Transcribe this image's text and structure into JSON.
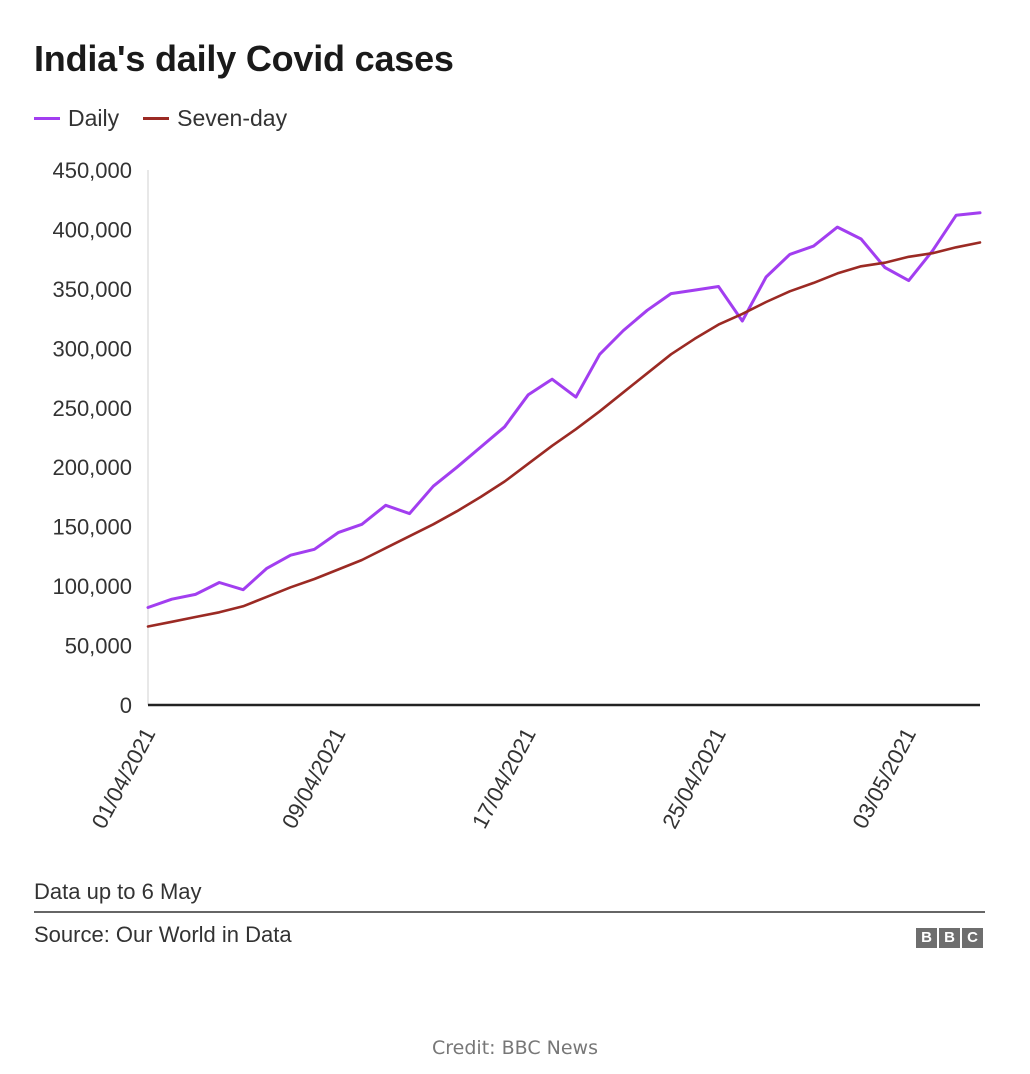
{
  "chart_data": {
    "type": "line",
    "title": "India's daily Covid cases",
    "x": [
      "01/04/2021",
      "02/04/2021",
      "03/04/2021",
      "04/04/2021",
      "05/04/2021",
      "06/04/2021",
      "07/04/2021",
      "08/04/2021",
      "09/04/2021",
      "10/04/2021",
      "11/04/2021",
      "12/04/2021",
      "13/04/2021",
      "14/04/2021",
      "15/04/2021",
      "16/04/2021",
      "17/04/2021",
      "18/04/2021",
      "19/04/2021",
      "20/04/2021",
      "21/04/2021",
      "22/04/2021",
      "23/04/2021",
      "24/04/2021",
      "25/04/2021",
      "26/04/2021",
      "27/04/2021",
      "28/04/2021",
      "29/04/2021",
      "30/04/2021",
      "01/05/2021",
      "02/05/2021",
      "03/05/2021",
      "04/05/2021",
      "05/05/2021",
      "06/05/2021"
    ],
    "series": [
      {
        "name": "Daily",
        "color": "#a23ef0",
        "values": [
          82000,
          89000,
          93000,
          103000,
          97000,
          115000,
          126000,
          131000,
          145000,
          152000,
          168000,
          161000,
          184000,
          200000,
          217000,
          234000,
          261000,
          274000,
          259000,
          295000,
          315000,
          332000,
          346000,
          349000,
          352000,
          323000,
          360000,
          379000,
          386000,
          402000,
          392000,
          368000,
          357000,
          382000,
          412000,
          414000
        ]
      },
      {
        "name": "Seven-day",
        "color": "#9b2a24",
        "values": [
          66000,
          70000,
          74000,
          78000,
          83000,
          91000,
          99000,
          106000,
          114000,
          122000,
          132000,
          142000,
          152000,
          163000,
          175000,
          188000,
          203000,
          218000,
          232000,
          247000,
          263000,
          279000,
          295000,
          308000,
          320000,
          329000,
          339000,
          348000,
          355000,
          363000,
          369000,
          372000,
          377000,
          380000,
          385000,
          389000
        ]
      }
    ],
    "ylim": [
      0,
      450000
    ],
    "yticks": [
      0,
      50000,
      100000,
      150000,
      200000,
      250000,
      300000,
      350000,
      400000,
      450000
    ],
    "ytick_labels": [
      "0",
      "50,000",
      "100,000",
      "150,000",
      "200,000",
      "250,000",
      "300,000",
      "350,000",
      "400,000",
      "450,000"
    ],
    "xtick_labels": [
      "01/04/2021",
      "09/04/2021",
      "17/04/2021",
      "25/04/2021",
      "03/05/2021"
    ],
    "xtick_indices": [
      0,
      8,
      16,
      24,
      32
    ],
    "legend_position": "top-left",
    "grid": false
  },
  "footer": {
    "note": "Data up to 6 May",
    "source": "Source: Our World in Data",
    "logo_letters": [
      "B",
      "B",
      "C"
    ]
  },
  "credit": "Credit: BBC News"
}
